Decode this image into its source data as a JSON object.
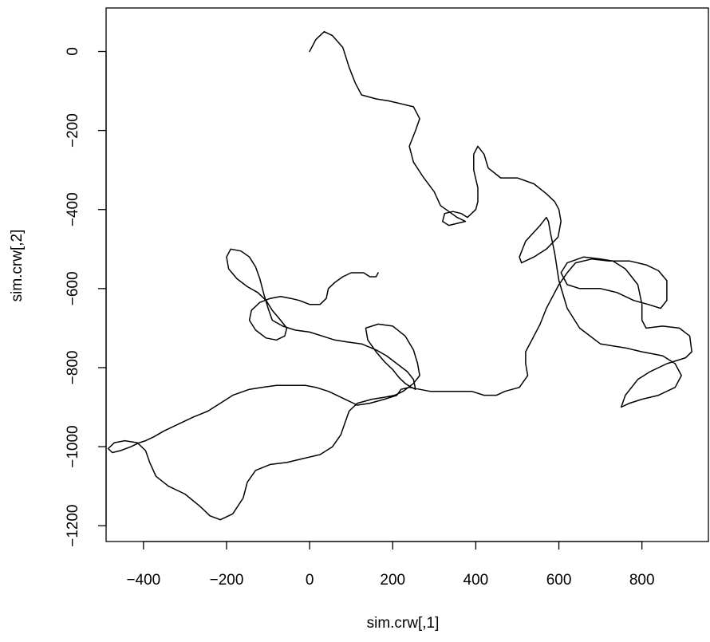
{
  "chart_data": {
    "type": "line",
    "xlabel": "sim.crw[,1]",
    "ylabel": "sim.crw[,2]",
    "xlim": [
      -490,
      960
    ],
    "ylim": [
      -1240,
      110
    ],
    "x_ticks": [
      -400,
      -200,
      0,
      200,
      400,
      600,
      800
    ],
    "y_ticks": [
      0,
      -200,
      -400,
      -600,
      -800,
      -1000,
      -1200
    ],
    "x_tick_labels": [
      "−400",
      "−200",
      "0",
      "200",
      "400",
      "600",
      "800"
    ],
    "y_tick_labels": [
      "0",
      "−200",
      "−400",
      "−600",
      "−800",
      "−1000",
      "−1200"
    ],
    "grid": false,
    "line_color": "#000000",
    "series": [
      {
        "points": [
          [
            0,
            0
          ],
          [
            15,
            30
          ],
          [
            35,
            50
          ],
          [
            55,
            40
          ],
          [
            80,
            10
          ],
          [
            95,
            -40
          ],
          [
            110,
            -80
          ],
          [
            125,
            -110
          ],
          [
            160,
            -120
          ],
          [
            190,
            -125
          ],
          [
            210,
            -130
          ],
          [
            250,
            -140
          ],
          [
            265,
            -170
          ],
          [
            255,
            -200
          ],
          [
            240,
            -240
          ],
          [
            250,
            -280
          ],
          [
            275,
            -320
          ],
          [
            300,
            -355
          ],
          [
            315,
            -390
          ],
          [
            335,
            -405
          ],
          [
            355,
            -420
          ],
          [
            375,
            -430
          ],
          [
            355,
            -435
          ],
          [
            335,
            -440
          ],
          [
            320,
            -430
          ],
          [
            325,
            -410
          ],
          [
            345,
            -405
          ],
          [
            365,
            -410
          ],
          [
            380,
            -420
          ],
          [
            400,
            -400
          ],
          [
            405,
            -380
          ],
          [
            405,
            -345
          ],
          [
            395,
            -300
          ],
          [
            395,
            -260
          ],
          [
            405,
            -240
          ],
          [
            420,
            -260
          ],
          [
            430,
            -295
          ],
          [
            460,
            -320
          ],
          [
            500,
            -320
          ],
          [
            540,
            -335
          ],
          [
            570,
            -360
          ],
          [
            590,
            -380
          ],
          [
            600,
            -400
          ],
          [
            605,
            -430
          ],
          [
            598,
            -470
          ],
          [
            570,
            -500
          ],
          [
            540,
            -520
          ],
          [
            510,
            -535
          ],
          [
            505,
            -520
          ],
          [
            520,
            -480
          ],
          [
            555,
            -440
          ],
          [
            570,
            -420
          ],
          [
            575,
            -430
          ],
          [
            580,
            -460
          ],
          [
            590,
            -510
          ],
          [
            600,
            -580
          ],
          [
            620,
            -650
          ],
          [
            650,
            -700
          ],
          [
            700,
            -740
          ],
          [
            760,
            -750
          ],
          [
            800,
            -760
          ],
          [
            850,
            -770
          ],
          [
            880,
            -790
          ],
          [
            895,
            -820
          ],
          [
            880,
            -850
          ],
          [
            840,
            -870
          ],
          [
            800,
            -880
          ],
          [
            770,
            -890
          ],
          [
            750,
            -900
          ],
          [
            760,
            -870
          ],
          [
            790,
            -830
          ],
          [
            820,
            -810
          ],
          [
            860,
            -790
          ],
          [
            905,
            -775
          ],
          [
            920,
            -760
          ],
          [
            915,
            -720
          ],
          [
            890,
            -700
          ],
          [
            850,
            -695
          ],
          [
            810,
            -700
          ],
          [
            800,
            -680
          ],
          [
            800,
            -640
          ],
          [
            790,
            -590
          ],
          [
            760,
            -550
          ],
          [
            730,
            -530
          ],
          [
            700,
            -525
          ],
          [
            660,
            -520
          ],
          [
            620,
            -535
          ],
          [
            605,
            -560
          ],
          [
            620,
            -590
          ],
          [
            650,
            -600
          ],
          [
            700,
            -600
          ],
          [
            740,
            -610
          ],
          [
            780,
            -630
          ],
          [
            815,
            -640
          ],
          [
            845,
            -650
          ],
          [
            860,
            -630
          ],
          [
            860,
            -580
          ],
          [
            840,
            -555
          ],
          [
            810,
            -540
          ],
          [
            770,
            -530
          ],
          [
            720,
            -530
          ],
          [
            680,
            -525
          ],
          [
            640,
            -535
          ],
          [
            620,
            -560
          ],
          [
            600,
            -590
          ],
          [
            585,
            -620
          ],
          [
            570,
            -650
          ],
          [
            555,
            -690
          ],
          [
            540,
            -720
          ],
          [
            520,
            -760
          ],
          [
            520,
            -790
          ],
          [
            525,
            -820
          ],
          [
            505,
            -850
          ],
          [
            470,
            -860
          ],
          [
            450,
            -870
          ],
          [
            420,
            -870
          ],
          [
            390,
            -860
          ],
          [
            340,
            -860
          ],
          [
            290,
            -860
          ],
          [
            240,
            -850
          ],
          [
            220,
            -855
          ],
          [
            210,
            -870
          ],
          [
            180,
            -880
          ],
          [
            145,
            -890
          ],
          [
            115,
            -895
          ],
          [
            85,
            -880
          ],
          [
            65,
            -870
          ],
          [
            45,
            -860
          ],
          [
            15,
            -850
          ],
          [
            -10,
            -845
          ],
          [
            -45,
            -845
          ],
          [
            -80,
            -845
          ],
          [
            -115,
            -850
          ],
          [
            -145,
            -855
          ],
          [
            -185,
            -870
          ],
          [
            -215,
            -890
          ],
          [
            -245,
            -910
          ],
          [
            -280,
            -925
          ],
          [
            -320,
            -945
          ],
          [
            -350,
            -960
          ],
          [
            -375,
            -975
          ],
          [
            -395,
            -985
          ],
          [
            -410,
            -990
          ],
          [
            -430,
            -1000
          ],
          [
            -455,
            -1010
          ],
          [
            -475,
            -1015
          ],
          [
            -485,
            -1005
          ],
          [
            -470,
            -990
          ],
          [
            -445,
            -985
          ],
          [
            -415,
            -990
          ],
          [
            -395,
            -1010
          ],
          [
            -385,
            -1040
          ],
          [
            -370,
            -1075
          ],
          [
            -340,
            -1100
          ],
          [
            -300,
            -1120
          ],
          [
            -265,
            -1150
          ],
          [
            -240,
            -1175
          ],
          [
            -215,
            -1185
          ],
          [
            -185,
            -1170
          ],
          [
            -160,
            -1130
          ],
          [
            -150,
            -1090
          ],
          [
            -130,
            -1060
          ],
          [
            -95,
            -1045
          ],
          [
            -55,
            -1040
          ],
          [
            -15,
            -1030
          ],
          [
            25,
            -1020
          ],
          [
            55,
            -1000
          ],
          [
            75,
            -970
          ],
          [
            85,
            -940
          ],
          [
            95,
            -910
          ],
          [
            115,
            -890
          ],
          [
            150,
            -880
          ],
          [
            180,
            -875
          ],
          [
            205,
            -870
          ],
          [
            225,
            -860
          ],
          [
            250,
            -840
          ],
          [
            265,
            -820
          ],
          [
            260,
            -790
          ],
          [
            250,
            -755
          ],
          [
            230,
            -720
          ],
          [
            200,
            -695
          ],
          [
            165,
            -690
          ],
          [
            135,
            -700
          ],
          [
            140,
            -730
          ],
          [
            160,
            -760
          ],
          [
            180,
            -785
          ],
          [
            200,
            -805
          ],
          [
            215,
            -825
          ],
          [
            230,
            -840
          ],
          [
            245,
            -850
          ],
          [
            255,
            -855
          ],
          [
            250,
            -830
          ],
          [
            235,
            -810
          ],
          [
            210,
            -790
          ],
          [
            185,
            -770
          ],
          [
            160,
            -755
          ],
          [
            125,
            -740
          ],
          [
            90,
            -735
          ],
          [
            60,
            -730
          ],
          [
            30,
            -720
          ],
          [
            0,
            -710
          ],
          [
            -35,
            -705
          ],
          [
            -65,
            -695
          ],
          [
            -90,
            -680
          ],
          [
            -100,
            -650
          ],
          [
            -110,
            -615
          ],
          [
            -120,
            -575
          ],
          [
            -130,
            -545
          ],
          [
            -145,
            -520
          ],
          [
            -165,
            -505
          ],
          [
            -190,
            -500
          ],
          [
            -200,
            -520
          ],
          [
            -195,
            -550
          ],
          [
            -175,
            -575
          ],
          [
            -150,
            -595
          ],
          [
            -125,
            -610
          ],
          [
            -105,
            -630
          ],
          [
            -90,
            -655
          ],
          [
            -70,
            -680
          ],
          [
            -55,
            -700
          ],
          [
            -60,
            -720
          ],
          [
            -80,
            -730
          ],
          [
            -105,
            -725
          ],
          [
            -130,
            -705
          ],
          [
            -145,
            -680
          ],
          [
            -140,
            -655
          ],
          [
            -120,
            -635
          ],
          [
            -95,
            -625
          ],
          [
            -70,
            -620
          ],
          [
            -45,
            -625
          ],
          [
            -25,
            -630
          ],
          [
            0,
            -640
          ],
          [
            25,
            -640
          ],
          [
            40,
            -625
          ],
          [
            45,
            -600
          ],
          [
            60,
            -585
          ],
          [
            80,
            -570
          ],
          [
            100,
            -560
          ],
          [
            130,
            -560
          ],
          [
            145,
            -570
          ],
          [
            160,
            -570
          ],
          [
            165,
            -560
          ]
        ]
      }
    ]
  }
}
